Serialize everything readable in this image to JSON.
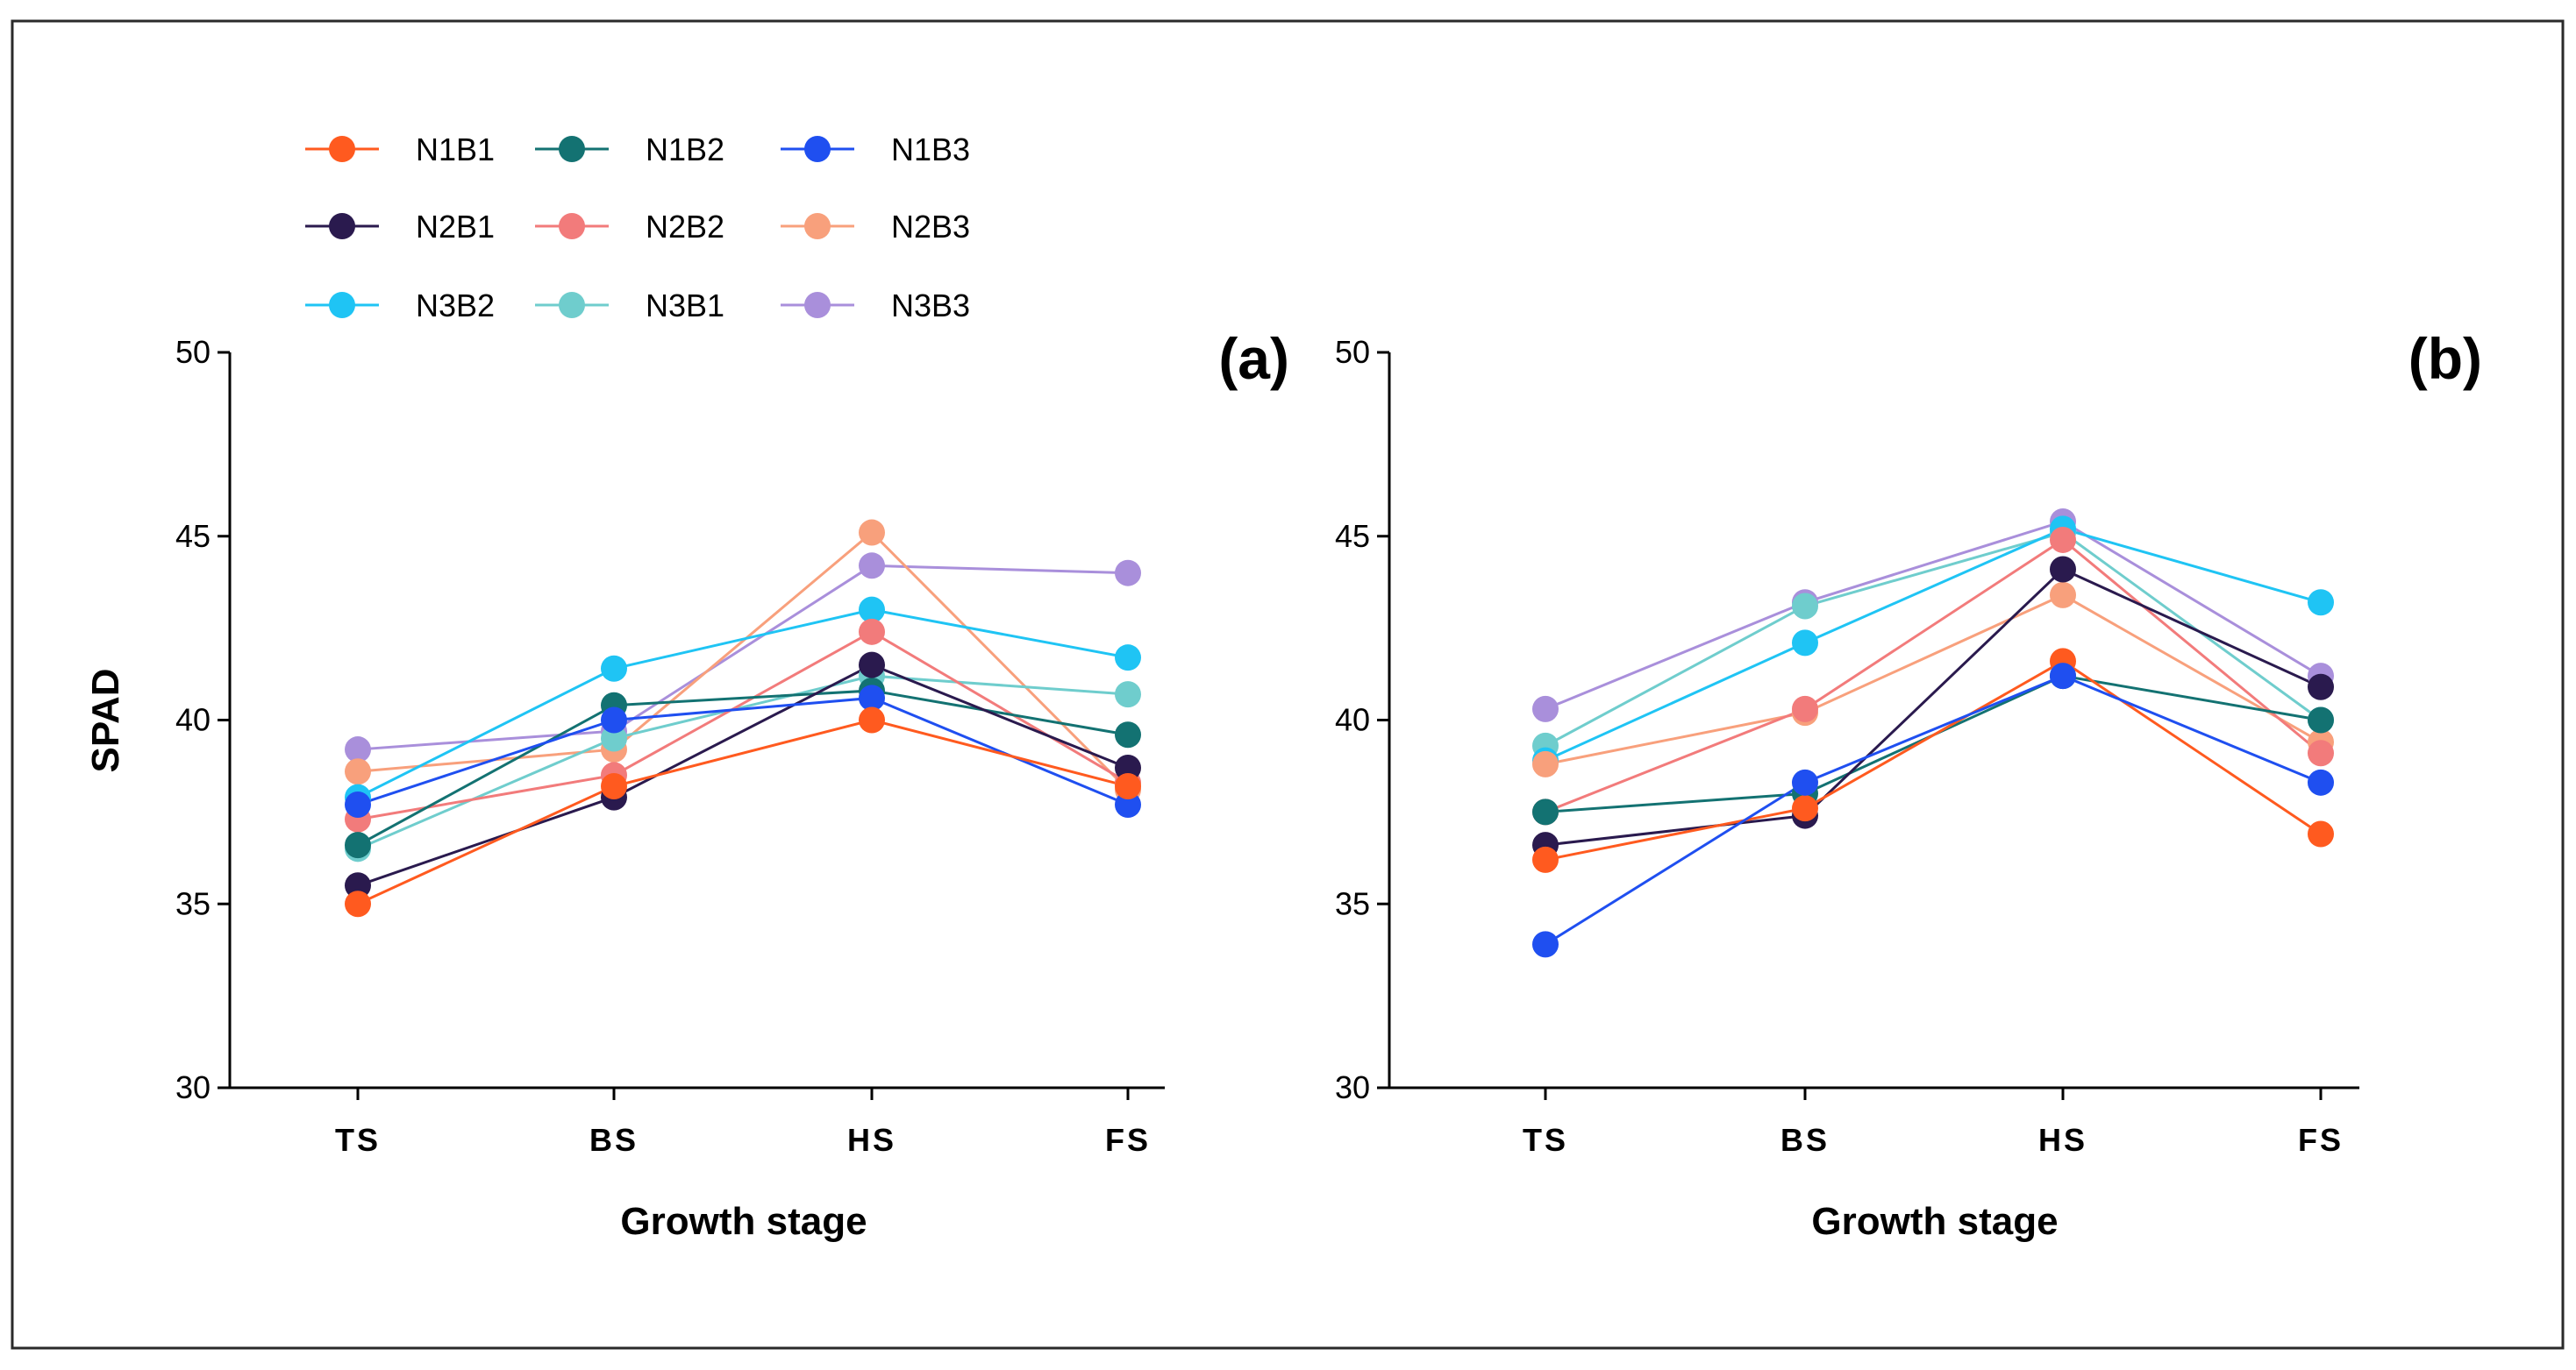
{
  "chart_data": {
    "type": "line",
    "ylabel": "SPAD",
    "xlabel": "Growth stage",
    "categories": [
      "TS",
      "BS",
      "HS",
      "FS"
    ],
    "ylim": [
      30,
      50
    ],
    "yticks": [
      30,
      35,
      40,
      45,
      50
    ],
    "legend": {
      "placement": "top-left",
      "entries": [
        "N1B1",
        "N1B2",
        "N1B3",
        "N2B1",
        "N2B2",
        "N2B3",
        "N3B2",
        "N3B1",
        "N3B3"
      ]
    },
    "colors": {
      "N1B1": "#ff5a1f",
      "N1B2": "#137272",
      "N1B3": "#1f4ff0",
      "N2B1": "#2a1a4e",
      "N2B2": "#f27b7b",
      "N2B3": "#f8a07c",
      "N3B2": "#1fc4f4",
      "N3B1": "#6fcdcd",
      "N3B3": "#a98fdb"
    },
    "panels": [
      {
        "label": "(a)",
        "series": [
          {
            "name": "N3B3",
            "values": [
              39.2,
              39.7,
              44.2,
              44.0
            ]
          },
          {
            "name": "N2B3",
            "values": [
              38.6,
              39.2,
              45.1,
              38.1
            ]
          },
          {
            "name": "N3B1",
            "values": [
              36.5,
              39.5,
              41.2,
              40.7
            ]
          },
          {
            "name": "N3B2",
            "values": [
              37.9,
              41.4,
              43.0,
              41.7
            ]
          },
          {
            "name": "N2B2",
            "values": [
              37.3,
              38.5,
              42.4,
              38.3
            ]
          },
          {
            "name": "N1B2",
            "values": [
              36.6,
              40.4,
              40.8,
              39.6
            ]
          },
          {
            "name": "N2B1",
            "values": [
              35.5,
              37.9,
              41.5,
              38.7
            ]
          },
          {
            "name": "N1B3",
            "values": [
              37.7,
              40.0,
              40.6,
              37.7
            ]
          },
          {
            "name": "N1B1",
            "values": [
              35.0,
              38.2,
              40.0,
              38.2
            ]
          }
        ]
      },
      {
        "label": "(b)",
        "series": [
          {
            "name": "N3B3",
            "values": [
              40.3,
              43.2,
              45.4,
              41.2
            ]
          },
          {
            "name": "N3B1",
            "values": [
              39.3,
              43.1,
              45.1,
              40.0
            ]
          },
          {
            "name": "N3B2",
            "values": [
              38.9,
              42.1,
              45.2,
              43.2
            ]
          },
          {
            "name": "N2B3",
            "values": [
              38.8,
              40.2,
              43.4,
              39.4
            ]
          },
          {
            "name": "N2B2",
            "values": [
              37.5,
              40.3,
              44.9,
              39.1
            ]
          },
          {
            "name": "N1B2",
            "values": [
              37.5,
              38.0,
              41.2,
              40.0
            ]
          },
          {
            "name": "N2B1",
            "values": [
              36.6,
              37.4,
              44.1,
              40.9
            ]
          },
          {
            "name": "N1B1",
            "values": [
              36.2,
              37.6,
              41.6,
              36.9
            ]
          },
          {
            "name": "N1B3",
            "values": [
              33.9,
              38.3,
              41.2,
              38.3
            ]
          }
        ]
      }
    ]
  }
}
